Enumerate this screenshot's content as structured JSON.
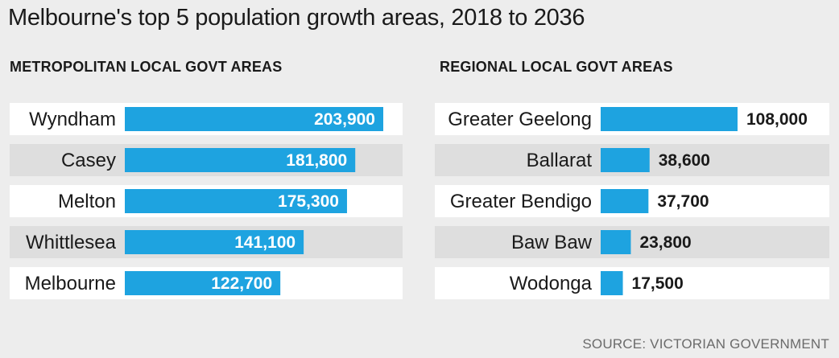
{
  "title": "Melbourne's top 5 population growth areas, 2018 to 2036",
  "source": "SOURCE: VICTORIAN GOVERNMENT",
  "colors": {
    "bar": "#1ea3e0",
    "row_white": "#ffffff",
    "row_grey": "#dedede",
    "background": "#ededed"
  },
  "chart_data": [
    {
      "type": "bar",
      "orientation": "horizontal",
      "title": "METROPOLITAN LOCAL GOVT AREAS",
      "categories": [
        "Wyndham",
        "Casey",
        "Melton",
        "Whittlesea",
        "Melbourne"
      ],
      "values": [
        203900,
        181800,
        175300,
        141100,
        122700
      ],
      "value_labels": [
        "203,900",
        "181,800",
        "175,300",
        "141,100",
        "122,700"
      ],
      "label_position": "inside"
    },
    {
      "type": "bar",
      "orientation": "horizontal",
      "title": "REGIONAL LOCAL GOVT AREAS",
      "categories": [
        "Greater Geelong",
        "Ballarat",
        "Greater Bendigo",
        "Baw Baw",
        "Wodonga"
      ],
      "values": [
        108000,
        38600,
        37700,
        23800,
        17500
      ],
      "value_labels": [
        "108,000",
        "38,600",
        "37,700",
        "23,800",
        "17,500"
      ],
      "label_position": "outside"
    }
  ]
}
